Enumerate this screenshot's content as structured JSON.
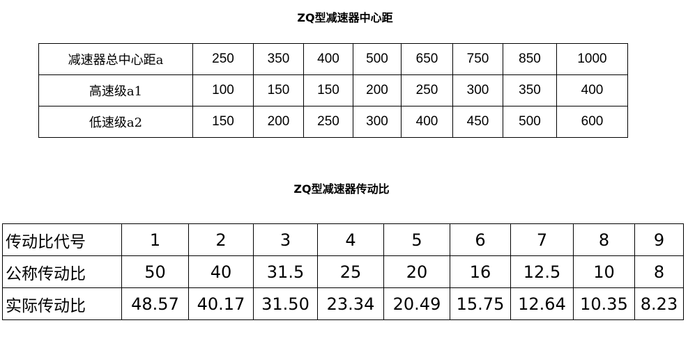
{
  "center_distance": {
    "title": "ZQ型减速器中心距",
    "rows": [
      {
        "label": "减速器总中心距a",
        "values": [
          "250",
          "350",
          "400",
          "500",
          "650",
          "750",
          "850",
          "1000"
        ]
      },
      {
        "label": "高速级a1",
        "values": [
          "100",
          "150",
          "150",
          "200",
          "250",
          "300",
          "350",
          "400"
        ]
      },
      {
        "label": "低速级a2",
        "values": [
          "150",
          "200",
          "250",
          "300",
          "400",
          "450",
          "500",
          "600"
        ]
      }
    ]
  },
  "ratio": {
    "title": "ZQ型减速器传动比",
    "rows": [
      {
        "label": "传动比代号",
        "values": [
          "1",
          "2",
          "3",
          "4",
          "5",
          "6",
          "7",
          "8",
          "9"
        ]
      },
      {
        "label": "公称传动比",
        "values": [
          "50",
          "40",
          "31.5",
          "25",
          "20",
          "16",
          "12.5",
          "10",
          "8"
        ]
      },
      {
        "label": "实际传动比",
        "values": [
          "48.57",
          "40.17",
          "31.50",
          "23.34",
          "20.49",
          "15.75",
          "12.64",
          "10.35",
          "8.23"
        ]
      }
    ]
  }
}
